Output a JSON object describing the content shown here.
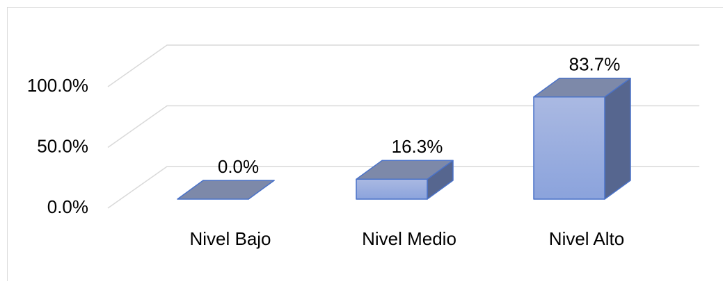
{
  "chart_data": {
    "type": "bar",
    "categories": [
      "Nivel Bajo",
      "Nivel Medio",
      "Nivel Alto"
    ],
    "values": [
      0,
      16.3,
      83.7
    ],
    "value_labels": [
      "0.0%",
      "16.3%",
      "83.7%"
    ],
    "color": "#9aaee0",
    "ylim": [
      0,
      100
    ],
    "yticks": [
      {
        "value": 0,
        "label": "0.0%"
      },
      {
        "value": 50,
        "label": "50.0%"
      },
      {
        "value": 100,
        "label": "100.0%"
      }
    ],
    "grid": true
  }
}
